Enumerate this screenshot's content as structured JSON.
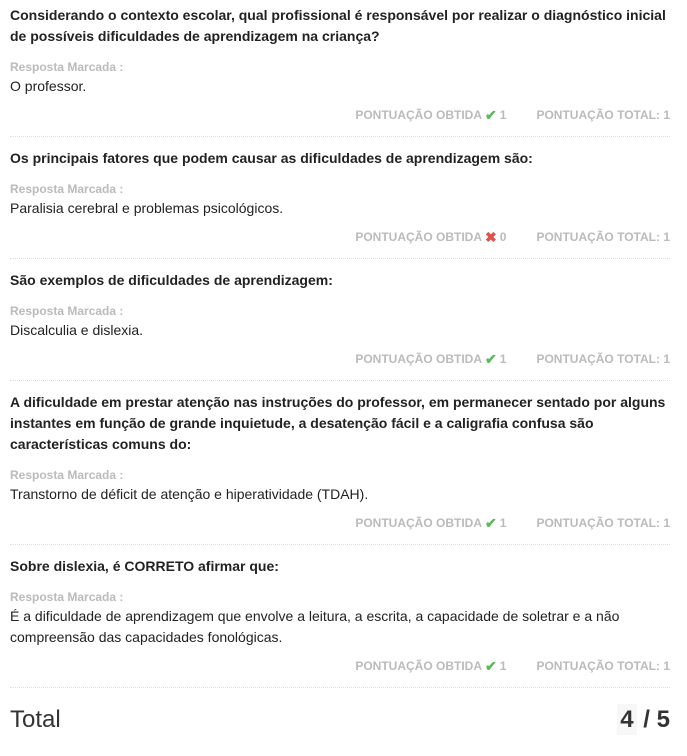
{
  "questions": [
    {
      "question": "Considerando o contexto escolar, qual profissional é responsável por realizar o diagnóstico inicial de possíveis dificuldades de aprendizagem na criança?",
      "answer_label": "Resposta Marcada :",
      "answer": "O professor.",
      "obtained_label": "PONTUAÇÃO OBTIDA",
      "obtained": "1",
      "status": "correct",
      "status_icon": "✔",
      "total_label": "PONTUAÇÃO TOTAL: 1"
    },
    {
      "question": "Os principais fatores que podem causar as dificuldades de aprendizagem são:",
      "answer_label": "Resposta Marcada :",
      "answer": "Paralisia cerebral e problemas psicológicos.",
      "obtained_label": "PONTUAÇÃO OBTIDA",
      "obtained": "0",
      "status": "wrong",
      "status_icon": "✖",
      "total_label": "PONTUAÇÃO TOTAL: 1"
    },
    {
      "question": "São exemplos de dificuldades de aprendizagem:",
      "answer_label": "Resposta Marcada :",
      "answer": "Discalculia e dislexia.",
      "obtained_label": "PONTUAÇÃO OBTIDA",
      "obtained": "1",
      "status": "correct",
      "status_icon": "✔",
      "total_label": "PONTUAÇÃO TOTAL: 1"
    },
    {
      "question": "A dificuldade em prestar atenção nas instruções do professor, em permanecer sentado por alguns instantes em função de grande inquietude, a desatenção fácil e a caligrafia confusa são características comuns do:",
      "answer_label": "Resposta Marcada :",
      "answer": "Transtorno de déficit de atenção e hiperatividade (TDAH).",
      "obtained_label": "PONTUAÇÃO OBTIDA",
      "obtained": "1",
      "status": "correct",
      "status_icon": "✔",
      "total_label": "PONTUAÇÃO TOTAL: 1"
    },
    {
      "question": "Sobre dislexia, é CORRETO afirmar que:",
      "answer_label": "Resposta Marcada :",
      "answer": "É a dificuldade de aprendizagem que envolve a leitura, a escrita, a capacidade de soletrar e a não compreensão das capacidades fonológicas.",
      "obtained_label": "PONTUAÇÃO OBTIDA",
      "obtained": "1",
      "status": "correct",
      "status_icon": "✔",
      "total_label": "PONTUAÇÃO TOTAL: 1"
    }
  ],
  "total": {
    "label": "Total",
    "score": "4",
    "separator": " / ",
    "max": "5"
  },
  "colors": {
    "correct": "#5cb85c",
    "wrong": "#d9534f"
  }
}
